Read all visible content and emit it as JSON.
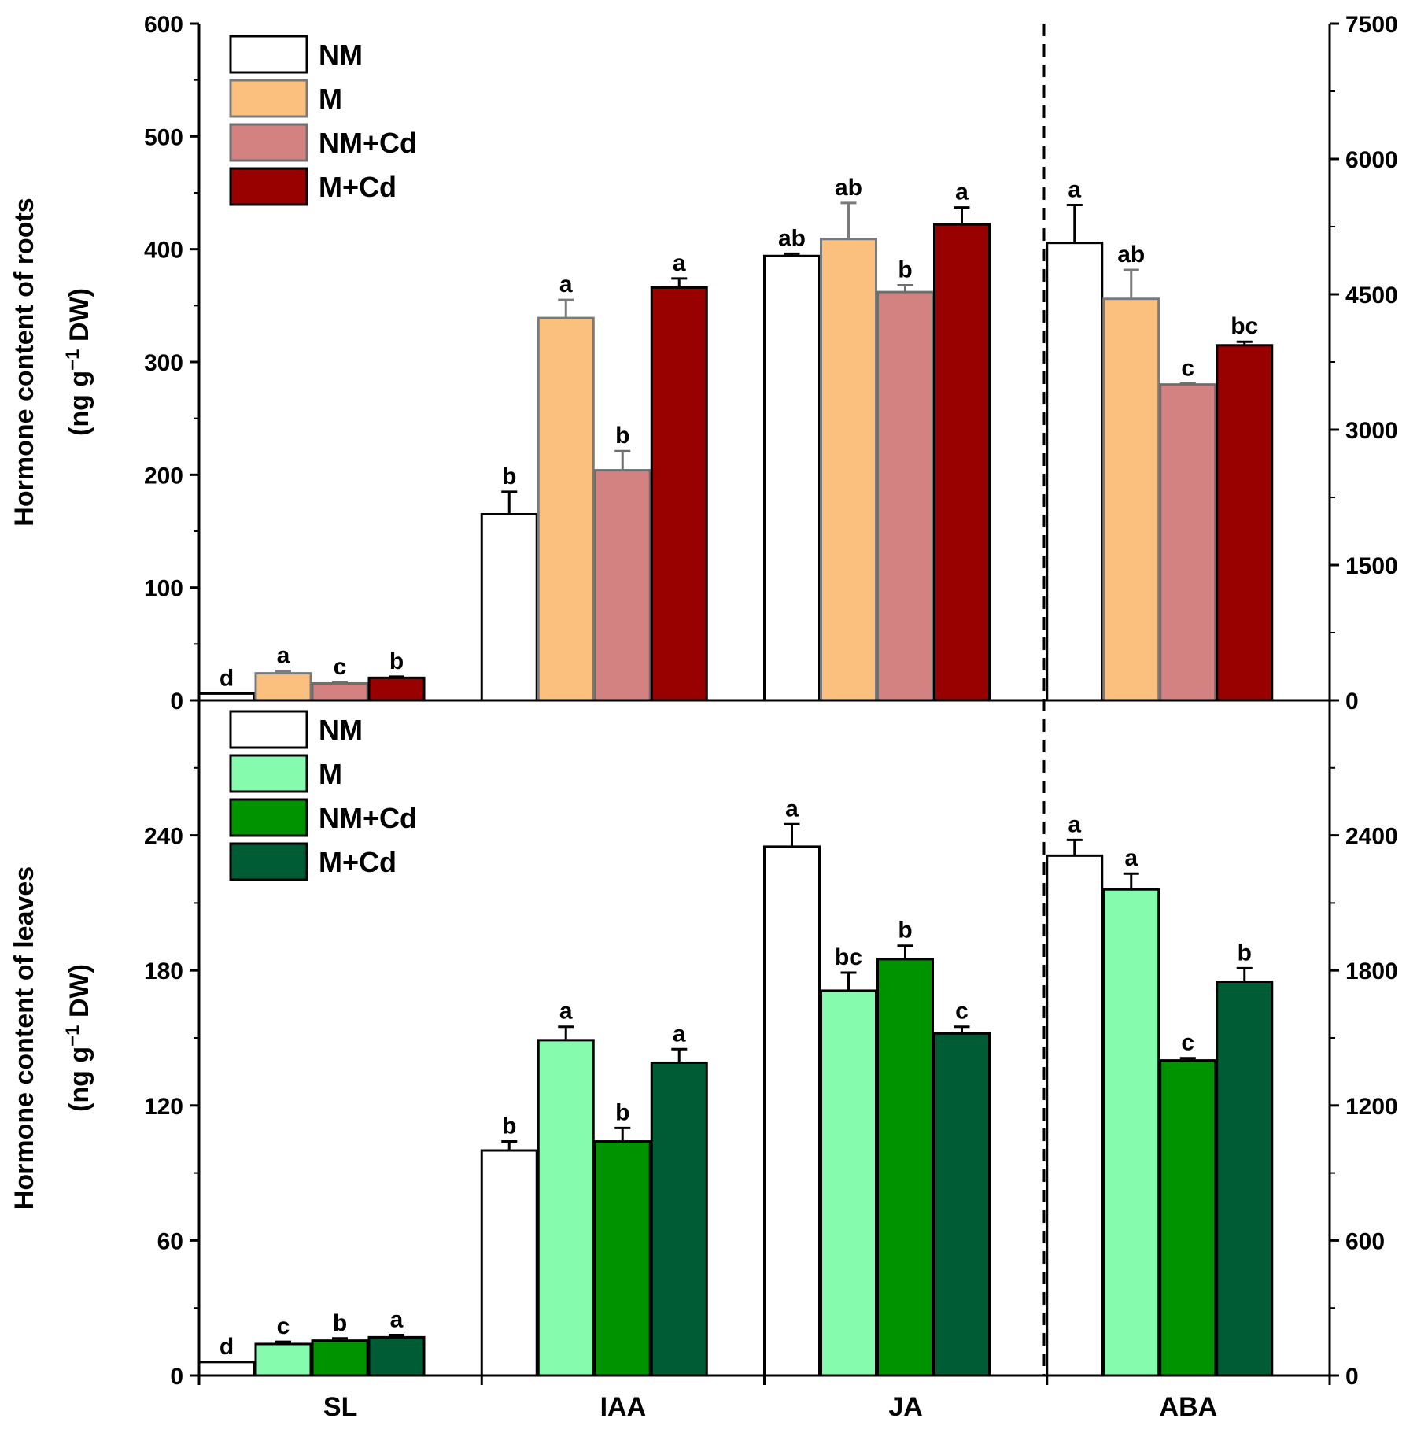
{
  "chart_data": [
    {
      "type": "bar",
      "name": "roots",
      "categories": [
        "SL",
        "IAA",
        "JA",
        "ABA"
      ],
      "ylabel_line1": "Hormone content of roots",
      "ylabel_line2_pre": "(ng g",
      "ylabel_line2_sup": "−1",
      "ylabel_line2_post": " DW)",
      "ylim_left": [
        0,
        600
      ],
      "yticks_left": [
        0,
        100,
        200,
        300,
        400,
        500,
        600
      ],
      "ylim_right": [
        0,
        7500
      ],
      "yticks_right": [
        0,
        1500,
        3000,
        4500,
        6000,
        7500
      ],
      "secondary_axis_categories": [
        "ABA"
      ],
      "series": [
        {
          "name": "NM",
          "color": "#ffffff",
          "stroke": "#000000",
          "values": [
            6,
            165,
            394,
            5070
          ],
          "errors": [
            0,
            20,
            2,
            420
          ],
          "labels": [
            "d",
            "b",
            "ab",
            "a"
          ]
        },
        {
          "name": "M",
          "color": "#fcc07e",
          "stroke": "#7a7a7a",
          "values": [
            24,
            339,
            409,
            4450
          ],
          "errors": [
            2,
            16,
            32,
            320
          ],
          "labels": [
            "a",
            "a",
            "ab",
            "ab"
          ]
        },
        {
          "name": "NM+Cd",
          "color": "#d48181",
          "stroke": "#6e6e6e",
          "values": [
            15,
            204,
            362,
            3500
          ],
          "errors": [
            1,
            17,
            6,
            10
          ],
          "labels": [
            "c",
            "b",
            "b",
            "c"
          ]
        },
        {
          "name": "M+Cd",
          "color": "#990000",
          "stroke": "#000000",
          "values": [
            20,
            366,
            422,
            3935
          ],
          "errors": [
            1,
            8,
            15,
            40
          ],
          "labels": [
            "b",
            "a",
            "a",
            "bc"
          ]
        }
      ]
    },
    {
      "type": "bar",
      "name": "leaves",
      "categories": [
        "SL",
        "IAA",
        "JA",
        "ABA"
      ],
      "ylabel_line1": "Hormone content of leaves",
      "ylabel_line2_pre": "(ng g",
      "ylabel_line2_sup": "−1",
      "ylabel_line2_post": " DW)",
      "ylim_left": [
        0,
        300
      ],
      "yticks_left": [
        0,
        60,
        120,
        180,
        240
      ],
      "ylim_right": [
        0,
        3000
      ],
      "yticks_right": [
        0,
        600,
        1200,
        1800,
        2400
      ],
      "secondary_axis_categories": [
        "ABA"
      ],
      "series": [
        {
          "name": "NM",
          "color": "#ffffff",
          "stroke": "#000000",
          "values": [
            6,
            100,
            235,
            2310
          ],
          "errors": [
            0,
            4,
            10,
            70
          ],
          "labels": [
            "d",
            "b",
            "a",
            "a"
          ]
        },
        {
          "name": "M",
          "color": "#85fcad",
          "stroke": "#000000",
          "values": [
            14,
            149,
            171,
            2160
          ],
          "errors": [
            1,
            6,
            8,
            70
          ],
          "labels": [
            "c",
            "a",
            "bc",
            "a"
          ]
        },
        {
          "name": "NM+Cd",
          "color": "#009300",
          "stroke": "#000000",
          "values": [
            15.5,
            104,
            185,
            1400
          ],
          "errors": [
            1,
            6,
            6,
            10
          ],
          "labels": [
            "b",
            "b",
            "b",
            "c"
          ]
        },
        {
          "name": "M+Cd",
          "color": "#005c35",
          "stroke": "#000000",
          "values": [
            17,
            139,
            152,
            1750
          ],
          "errors": [
            1,
            6,
            3,
            60
          ],
          "labels": [
            "a",
            "a",
            "c",
            "b"
          ]
        }
      ]
    }
  ]
}
